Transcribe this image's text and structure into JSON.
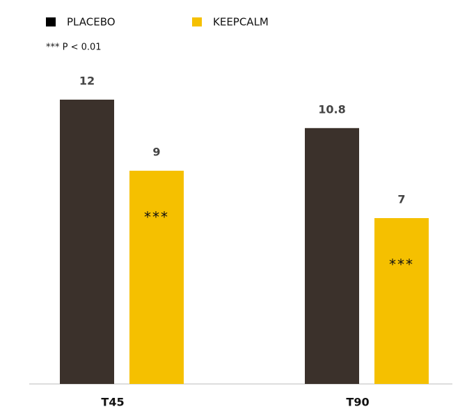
{
  "chart_data": {
    "type": "bar",
    "note": "*** P < 0.01",
    "categories": [
      "T45",
      "T90"
    ],
    "series": [
      {
        "name": "PLACEBO",
        "color": "#3b312b",
        "values": [
          12,
          10.8
        ]
      },
      {
        "name": "KEEPCALM",
        "color": "#f5c000",
        "values": [
          9,
          7
        ],
        "annotations": [
          "***",
          "***"
        ]
      }
    ]
  }
}
